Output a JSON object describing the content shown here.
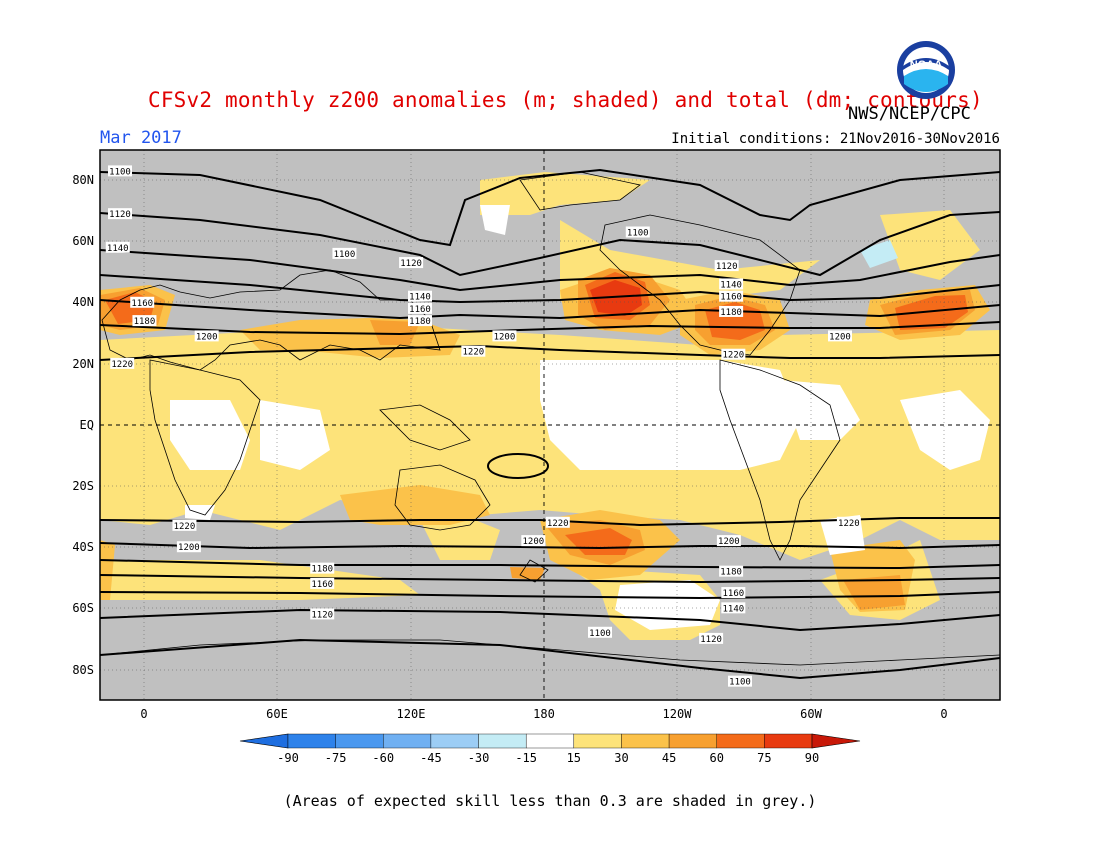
{
  "title": "CFSv2 monthly z200 anomalies (m; shaded) and total (dm; contours)",
  "agency": "NWS/NCEP/CPC",
  "logo_text": "NOAA",
  "month": "Mar 2017",
  "initial_conditions": "Initial conditions: 21Nov2016-30Nov2016",
  "footnote": "(Areas of expected skill less than 0.3 are shaded in grey.)",
  "colors": {
    "title": "#e00000",
    "month": "#2255ee",
    "skill_mask_grey": "#c0c0c0",
    "neutral": "#ffffff"
  },
  "map": {
    "lat_labels": [
      "80N",
      "60N",
      "40N",
      "20N",
      "EQ",
      "20S",
      "40S",
      "60S",
      "80S"
    ],
    "lon_labels": [
      "0",
      "60E",
      "120E",
      "180",
      "120W",
      "60W",
      "0"
    ],
    "lon_range_deg": [
      -20,
      385
    ],
    "lat_range_deg": [
      -90,
      90
    ]
  },
  "colorbar": {
    "levels": [
      "-90",
      "-75",
      "-60",
      "-45",
      "-30",
      "-15",
      "15",
      "30",
      "45",
      "60",
      "75",
      "90"
    ],
    "colors": [
      "#1e6ee0",
      "#2e82ea",
      "#4a98ef",
      "#70b0f2",
      "#9ccdf5",
      "#c4ecf5",
      "#ffffff",
      "#fde37a",
      "#fbc24a",
      "#f7a030",
      "#f46b1a",
      "#e83a10",
      "#c81808"
    ]
  },
  "contours": [
    {
      "label": "1100",
      "lat": 75,
      "label_points": [
        [
          -11,
          83
        ],
        [
          90,
          56
        ],
        [
          222,
          63
        ],
        [
          205,
          -68
        ],
        [
          268,
          -84
        ]
      ]
    },
    {
      "label": "1120",
      "lat": 62,
      "label_points": [
        [
          -11,
          69
        ],
        [
          120,
          53
        ],
        [
          262,
          52
        ],
        [
          80,
          -62
        ],
        [
          255,
          -70
        ]
      ]
    },
    {
      "label": "1140",
      "lat": 52,
      "label_points": [
        [
          -12,
          58
        ],
        [
          124,
          42
        ],
        [
          264,
          46
        ],
        [
          265,
          -60
        ]
      ]
    },
    {
      "label": "1160",
      "lat": 44,
      "label_points": [
        [
          -1,
          40
        ],
        [
          124,
          38
        ],
        [
          264,
          42
        ],
        [
          80,
          -52
        ],
        [
          265,
          -55
        ]
      ]
    },
    {
      "label": "1180",
      "lat": 37,
      "label_points": [
        [
          0,
          34
        ],
        [
          124,
          34
        ],
        [
          264,
          37
        ],
        [
          80,
          -47
        ],
        [
          264,
          -48
        ]
      ]
    },
    {
      "label": "1200",
      "lat": 30,
      "label_points": [
        [
          28,
          29
        ],
        [
          162,
          29
        ],
        [
          313,
          29
        ],
        [
          20,
          -40
        ],
        [
          175,
          -38
        ],
        [
          263,
          -38
        ]
      ]
    },
    {
      "label": "1220",
      "lat": 22,
      "label_points": [
        [
          -10,
          20
        ],
        [
          148,
          24
        ],
        [
          265,
          23
        ],
        [
          18,
          -33
        ],
        [
          186,
          -32
        ],
        [
          317,
          -32
        ]
      ]
    }
  ],
  "anomaly_regions": [
    {
      "level": "45",
      "region": "North Pacific ridge",
      "center": [
        202,
        38
      ]
    },
    {
      "level": "60",
      "region": "North Pacific core",
      "center": [
        200,
        39
      ]
    },
    {
      "level": "45",
      "region": "Eastern North America",
      "center": [
        275,
        35
      ]
    },
    {
      "level": "45",
      "region": "Western Europe / North Atlantic",
      "center": [
        -12,
        37
      ]
    },
    {
      "level": "45",
      "region": "South Pacific east of New Zealand",
      "center": [
        195,
        -39
      ]
    },
    {
      "level": "45",
      "region": "South Atlantic",
      "center": [
        335,
        -55
      ]
    },
    {
      "level": "neutral",
      "region": "Southern Ocean south of Pacific",
      "center": [
        210,
        -59
      ]
    }
  ]
}
